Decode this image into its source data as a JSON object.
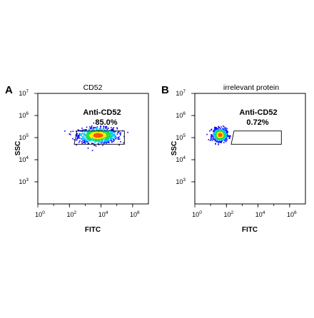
{
  "chart_data": [
    {
      "type": "scatter",
      "panel_label": "A",
      "title": "CD52",
      "xlabel": "FITC",
      "ylabel": "SSC",
      "x_scale": "log",
      "y_scale": "log",
      "xlim": [
        1,
        10000000
      ],
      "ylim": [
        100,
        10000000
      ],
      "x_ticks": [
        {
          "value": 1,
          "base": "10",
          "exp": "0"
        },
        {
          "value": 100,
          "base": "10",
          "exp": "2"
        },
        {
          "value": 10000,
          "base": "10",
          "exp": "4"
        },
        {
          "value": 1000000,
          "base": "10",
          "exp": "6"
        }
      ],
      "y_ticks": [
        {
          "value": 1000,
          "base": "10",
          "exp": "3"
        },
        {
          "value": 10000,
          "base": "10",
          "exp": "4"
        },
        {
          "value": 100000,
          "base": "10",
          "exp": "5"
        },
        {
          "value": 1000000,
          "base": "10",
          "exp": "6"
        },
        {
          "value": 10000000,
          "base": "10",
          "exp": "7"
        }
      ],
      "gate": {
        "name": "Anti-CD52",
        "percent": "85.0%",
        "polygon": [
          [
            300,
            200000
          ],
          [
            300000,
            200000
          ],
          [
            300000,
            50000
          ],
          [
            200,
            50000
          ]
        ]
      },
      "population": {
        "center_log10": [
          3.8,
          5.1
        ],
        "spread_log10": [
          0.6,
          0.17
        ],
        "events": 1000
      }
    },
    {
      "type": "scatter",
      "panel_label": "B",
      "title": "irrelevant protein",
      "xlabel": "FITC",
      "ylabel": "SSC",
      "x_scale": "log",
      "y_scale": "log",
      "xlim": [
        1,
        10000000
      ],
      "ylim": [
        100,
        10000000
      ],
      "x_ticks": [
        {
          "value": 1,
          "base": "10",
          "exp": "0"
        },
        {
          "value": 100,
          "base": "10",
          "exp": "2"
        },
        {
          "value": 10000,
          "base": "10",
          "exp": "4"
        },
        {
          "value": 1000000,
          "base": "10",
          "exp": "6"
        }
      ],
      "y_ticks": [
        {
          "value": 1000,
          "base": "10",
          "exp": "3"
        },
        {
          "value": 10000,
          "base": "10",
          "exp": "4"
        },
        {
          "value": 100000,
          "base": "10",
          "exp": "5"
        },
        {
          "value": 1000000,
          "base": "10",
          "exp": "6"
        },
        {
          "value": 10000000,
          "base": "10",
          "exp": "7"
        }
      ],
      "gate": {
        "name": "Anti-CD52",
        "percent": "0.72%",
        "polygon": [
          [
            300,
            200000
          ],
          [
            300000,
            200000
          ],
          [
            300000,
            50000
          ],
          [
            200,
            50000
          ]
        ]
      },
      "population": {
        "center_log10": [
          1.6,
          5.12
        ],
        "spread_log10": [
          0.22,
          0.14
        ],
        "events": 650
      }
    }
  ],
  "colors": {
    "density_low": "#0000ff",
    "density_mid_low": "#00c8ff",
    "density_mid": "#22dd44",
    "density_mid_high": "#ffee00",
    "density_high": "#ff5500",
    "axis": "#000000"
  }
}
